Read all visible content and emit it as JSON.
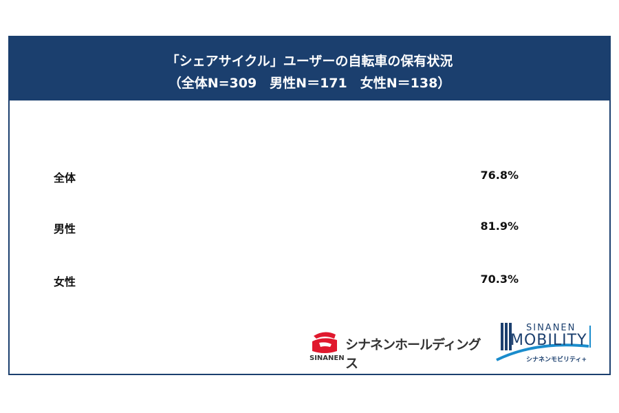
{
  "chart_data": {
    "type": "pictogram",
    "title": "「シェアサイクル」ユーザーの自転車の保有状況",
    "subtitle": "（全体N=309　男性N＝171　女性N＝138）",
    "icons_per_row": 10,
    "categories": [
      "全体",
      "男性",
      "女性"
    ],
    "values": [
      76.8,
      81.9,
      70.3
    ],
    "value_labels": [
      "76.8%",
      "81.9%",
      "70.3%"
    ],
    "icons": [
      "bicycle-icon",
      "male-icon",
      "female-icon"
    ],
    "colors": [
      "#1b3f6e",
      "#1a8ccc",
      "#e0182d"
    ]
  },
  "logos": {
    "holdings": {
      "name": "シナネンホールディングス",
      "sub": "SINANEN"
    },
    "mobility": {
      "top": "SINANEN",
      "main": "MOBILITY",
      "sub": "シナネンモビリティ+"
    }
  },
  "colors": {
    "header": "#1b3f6e"
  }
}
